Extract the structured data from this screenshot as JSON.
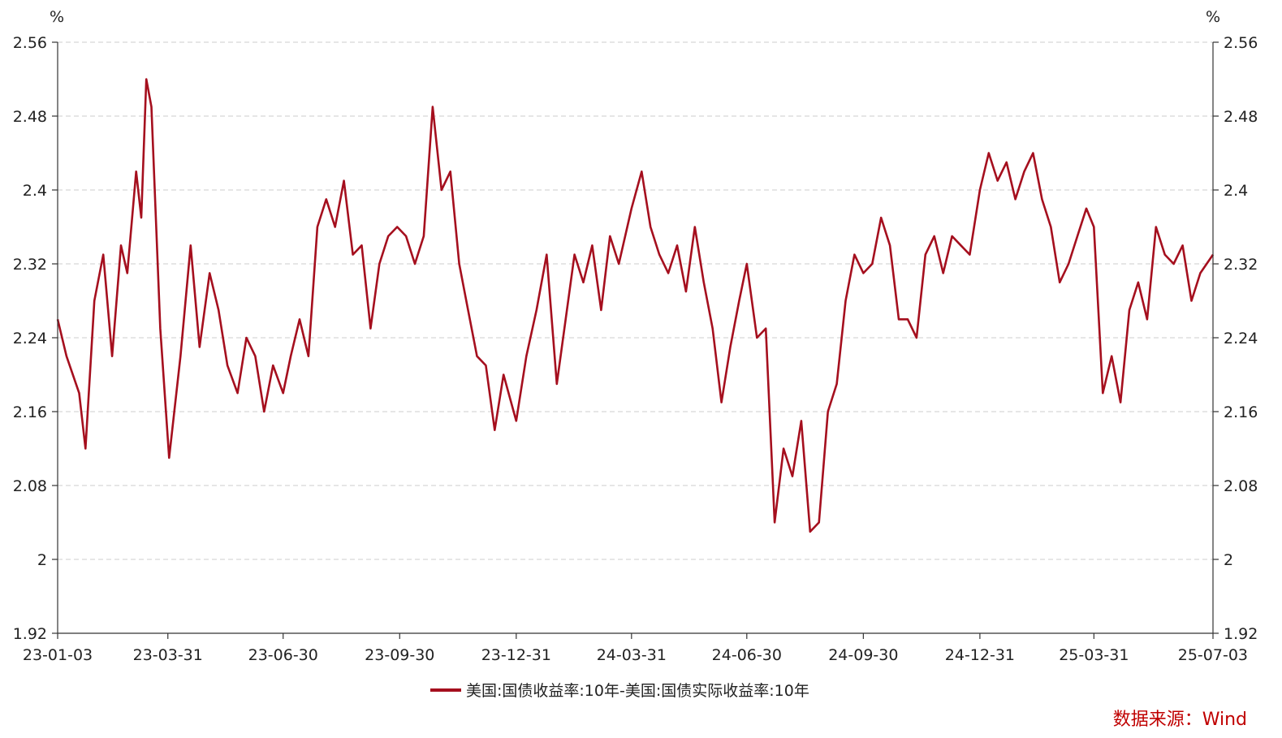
{
  "chart_data": {
    "type": "line",
    "y_unit_left": "%",
    "y_unit_right": "%",
    "ylim": [
      1.92,
      2.56
    ],
    "yticks": [
      "2.56",
      "2.48",
      "2.4",
      "2.32",
      "2.24",
      "2.16",
      "2.08",
      "2",
      "1.92"
    ],
    "xlim": [
      "2023-01-03",
      "2025-07-03"
    ],
    "xticks": [
      {
        "label": "23-01-03",
        "date": "2023-01-03"
      },
      {
        "label": "23-03-31",
        "date": "2023-03-31"
      },
      {
        "label": "23-06-30",
        "date": "2023-06-30"
      },
      {
        "label": "23-09-30",
        "date": "2023-09-30"
      },
      {
        "label": "23-12-31",
        "date": "2023-12-31"
      },
      {
        "label": "24-03-31",
        "date": "2024-03-31"
      },
      {
        "label": "24-06-30",
        "date": "2024-06-30"
      },
      {
        "label": "24-09-30",
        "date": "2024-09-30"
      },
      {
        "label": "24-12-31",
        "date": "2024-12-31"
      },
      {
        "label": "25-03-31",
        "date": "2025-03-31"
      },
      {
        "label": "25-07-03",
        "date": "2025-07-03"
      }
    ],
    "grid": true,
    "legend_position": "bottom-center",
    "series": [
      {
        "name": "美国:国债收益率:10年-美国:国债实际收益率:10年",
        "color": "#a50f1e",
        "x": [
          "2023-01-03",
          "2023-01-10",
          "2023-01-20",
          "2023-01-25",
          "2023-02-01",
          "2023-02-08",
          "2023-02-15",
          "2023-02-22",
          "2023-02-27",
          "2023-03-06",
          "2023-03-10",
          "2023-03-14",
          "2023-03-18",
          "2023-03-25",
          "2023-04-01",
          "2023-04-10",
          "2023-04-18",
          "2023-04-25",
          "2023-05-03",
          "2023-05-10",
          "2023-05-17",
          "2023-05-25",
          "2023-06-01",
          "2023-06-08",
          "2023-06-15",
          "2023-06-22",
          "2023-06-30",
          "2023-07-06",
          "2023-07-13",
          "2023-07-20",
          "2023-07-27",
          "2023-08-03",
          "2023-08-10",
          "2023-08-17",
          "2023-08-24",
          "2023-08-31",
          "2023-09-07",
          "2023-09-14",
          "2023-09-21",
          "2023-09-28",
          "2023-10-05",
          "2023-10-12",
          "2023-10-19",
          "2023-10-26",
          "2023-11-02",
          "2023-11-09",
          "2023-11-16",
          "2023-11-23",
          "2023-11-30",
          "2023-12-07",
          "2023-12-14",
          "2023-12-21",
          "2023-12-31",
          "2024-01-08",
          "2024-01-16",
          "2024-01-24",
          "2024-02-01",
          "2024-02-08",
          "2024-02-15",
          "2024-02-22",
          "2024-02-29",
          "2024-03-07",
          "2024-03-14",
          "2024-03-21",
          "2024-03-31",
          "2024-04-08",
          "2024-04-15",
          "2024-04-22",
          "2024-04-29",
          "2024-05-06",
          "2024-05-13",
          "2024-05-20",
          "2024-05-27",
          "2024-06-03",
          "2024-06-10",
          "2024-06-17",
          "2024-06-24",
          "2024-06-30",
          "2024-07-08",
          "2024-07-15",
          "2024-07-22",
          "2024-07-29",
          "2024-08-05",
          "2024-08-12",
          "2024-08-19",
          "2024-08-26",
          "2024-09-02",
          "2024-09-09",
          "2024-09-16",
          "2024-09-23",
          "2024-09-30",
          "2024-10-07",
          "2024-10-14",
          "2024-10-21",
          "2024-10-28",
          "2024-11-04",
          "2024-11-11",
          "2024-11-18",
          "2024-11-25",
          "2024-12-02",
          "2024-12-09",
          "2024-12-16",
          "2024-12-23",
          "2024-12-31",
          "2025-01-07",
          "2025-01-14",
          "2025-01-21",
          "2025-01-28",
          "2025-02-04",
          "2025-02-11",
          "2025-02-18",
          "2025-02-25",
          "2025-03-04",
          "2025-03-11",
          "2025-03-18",
          "2025-03-25",
          "2025-03-31",
          "2025-04-07",
          "2025-04-14",
          "2025-04-21",
          "2025-04-28",
          "2025-05-05",
          "2025-05-12",
          "2025-05-19",
          "2025-05-26",
          "2025-06-02",
          "2025-06-09",
          "2025-06-16",
          "2025-06-23",
          "2025-07-03"
        ],
        "values": [
          2.26,
          2.22,
          2.18,
          2.12,
          2.28,
          2.33,
          2.22,
          2.34,
          2.31,
          2.42,
          2.37,
          2.52,
          2.49,
          2.25,
          2.11,
          2.22,
          2.34,
          2.23,
          2.31,
          2.27,
          2.21,
          2.18,
          2.24,
          2.22,
          2.16,
          2.21,
          2.18,
          2.22,
          2.26,
          2.22,
          2.36,
          2.39,
          2.36,
          2.41,
          2.33,
          2.34,
          2.25,
          2.32,
          2.35,
          2.36,
          2.35,
          2.32,
          2.35,
          2.49,
          2.4,
          2.42,
          2.32,
          2.27,
          2.22,
          2.21,
          2.14,
          2.2,
          2.15,
          2.22,
          2.27,
          2.33,
          2.19,
          2.26,
          2.33,
          2.3,
          2.34,
          2.27,
          2.35,
          2.32,
          2.38,
          2.42,
          2.36,
          2.33,
          2.31,
          2.34,
          2.29,
          2.36,
          2.3,
          2.25,
          2.17,
          2.23,
          2.28,
          2.32,
          2.24,
          2.25,
          2.04,
          2.12,
          2.09,
          2.15,
          2.03,
          2.04,
          2.16,
          2.19,
          2.28,
          2.33,
          2.31,
          2.32,
          2.37,
          2.34,
          2.26,
          2.26,
          2.24,
          2.33,
          2.35,
          2.31,
          2.35,
          2.34,
          2.33,
          2.4,
          2.44,
          2.41,
          2.43,
          2.39,
          2.42,
          2.44,
          2.39,
          2.36,
          2.3,
          2.32,
          2.35,
          2.38,
          2.36,
          2.18,
          2.22,
          2.17,
          2.27,
          2.3,
          2.26,
          2.36,
          2.33,
          2.32,
          2.34,
          2.28,
          2.31,
          2.33
        ]
      }
    ]
  },
  "legend": {
    "label": "美国:国债收益率:10年-美国:国债实际收益率:10年",
    "color": "#a50f1e"
  },
  "source": "数据来源：Wind"
}
